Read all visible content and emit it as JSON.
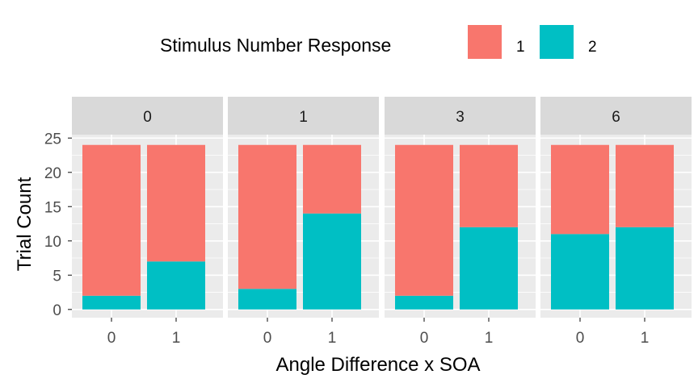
{
  "chart_data": {
    "type": "bar",
    "stacked": true,
    "facet_by": "",
    "facets": [
      "0",
      "1",
      "3",
      "6"
    ],
    "categories": [
      "0",
      "1"
    ],
    "legend": {
      "title": "Stimulus Number Response",
      "position": "top",
      "entries": [
        "1",
        "2"
      ]
    },
    "series": [
      {
        "name": "1",
        "color": "#F8766D",
        "values": [
          [
            22,
            17
          ],
          [
            21,
            10
          ],
          [
            22,
            12
          ],
          [
            13,
            12
          ]
        ]
      },
      {
        "name": "2",
        "color": "#00BFC4",
        "values": [
          [
            2,
            7
          ],
          [
            3,
            14
          ],
          [
            2,
            12
          ],
          [
            11,
            12
          ]
        ]
      }
    ],
    "xlabel": "Angle Difference x SOA",
    "ylabel": "Trial Count",
    "ylim": [
      -1.2,
      25.5
    ],
    "yticks": [
      0,
      5,
      10,
      15,
      20,
      25
    ],
    "grid": true,
    "panel_background": "#EBEBEB",
    "strip_background": "#D9D9D9"
  }
}
